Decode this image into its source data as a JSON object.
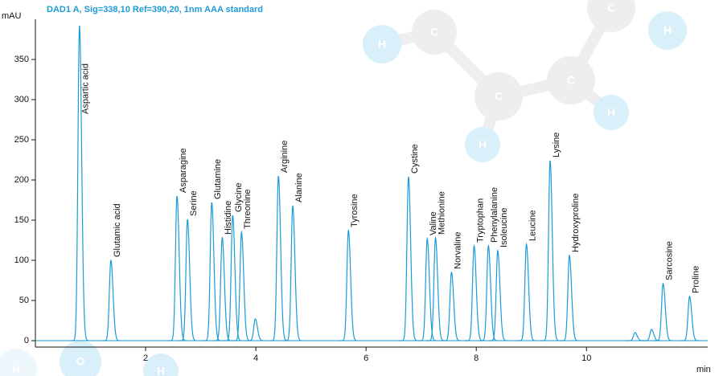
{
  "chart_data": {
    "type": "chromatogram",
    "title": "DAD1 A, Sig=338,10 Ref=390,20, 1nm AAA standard",
    "ylabel": "mAU",
    "xlabel": "min",
    "color": "#1b9bd7",
    "xlim": [
      0,
      12.2
    ],
    "ylim": [
      -8,
      394
    ],
    "xticks": [
      2,
      4,
      6,
      8,
      10
    ],
    "yticks": [
      0,
      50,
      100,
      150,
      200,
      250,
      300,
      350
    ],
    "categories": [
      "Aspartic acid",
      "Glutamic acid",
      "Asparagine",
      "Serine",
      "Glutamine",
      "Histidine",
      "Glycine",
      "Threonine",
      null,
      "Arginine",
      "Alanine",
      "Tyrosine",
      "Cystine",
      "Valine",
      "Methionine",
      "Norvaline",
      "Tryptophan",
      "Phenylalanine",
      "Isoleucine",
      "Leucine",
      "Lysine",
      "Hydroxyproline",
      null,
      null,
      "Sarcosine",
      "Proline"
    ],
    "x": [
      0.8,
      1.37,
      2.57,
      2.76,
      3.2,
      3.39,
      3.58,
      3.74,
      3.99,
      4.41,
      4.67,
      5.68,
      6.77,
      7.11,
      7.26,
      7.55,
      7.96,
      8.22,
      8.39,
      8.91,
      9.34,
      9.69,
      10.88,
      11.18,
      11.39,
      11.87
    ],
    "values": [
      392,
      100,
      180,
      151,
      172,
      128,
      156,
      135,
      27,
      205,
      168,
      137,
      204,
      127,
      128,
      85,
      118,
      118,
      112,
      120,
      224,
      106,
      10,
      14,
      71,
      55
    ],
    "background_atoms": [
      "H",
      "C",
      "C",
      "C",
      "C",
      "H",
      "H",
      "H",
      "H",
      "O",
      "H"
    ]
  }
}
